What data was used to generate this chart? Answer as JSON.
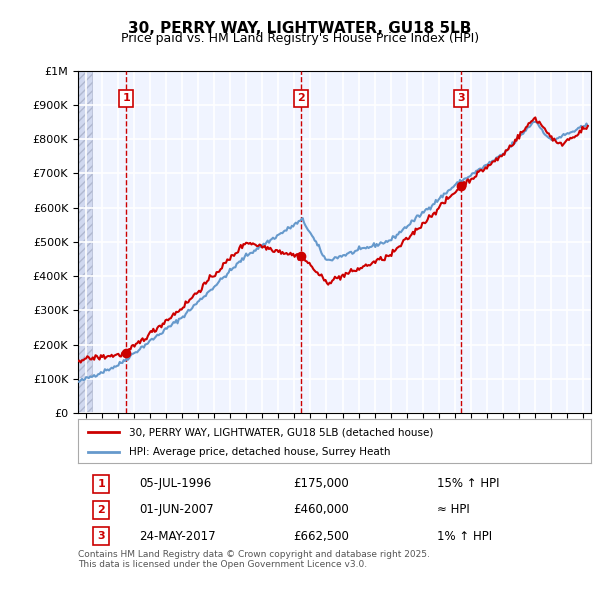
{
  "title": "30, PERRY WAY, LIGHTWATER, GU18 5LB",
  "subtitle": "Price paid vs. HM Land Registry's House Price Index (HPI)",
  "legend_line1": "30, PERRY WAY, LIGHTWATER, GU18 5LB (detached house)",
  "legend_line2": "HPI: Average price, detached house, Surrey Heath",
  "sale1_date": "05-JUL-1996",
  "sale1_price": 175000,
  "sale1_note": "15% ↑ HPI",
  "sale2_date": "01-JUN-2007",
  "sale2_price": 460000,
  "sale2_note": "≈ HPI",
  "sale3_date": "24-MAY-2017",
  "sale3_price": 662500,
  "sale3_note": "1% ↑ HPI",
  "footer": "Contains HM Land Registry data © Crown copyright and database right 2025.\nThis data is licensed under the Open Government Licence v3.0.",
  "hpi_color": "#6699cc",
  "price_color": "#cc0000",
  "sale_marker_color": "#cc0000",
  "dashed_line_color": "#cc0000",
  "background_color": "#f0f4ff",
  "hatch_color": "#c8d0e8",
  "grid_color": "#ffffff",
  "ylim": [
    0,
    1000000
  ],
  "xlim_start": 1993.5,
  "xlim_end": 2025.5
}
